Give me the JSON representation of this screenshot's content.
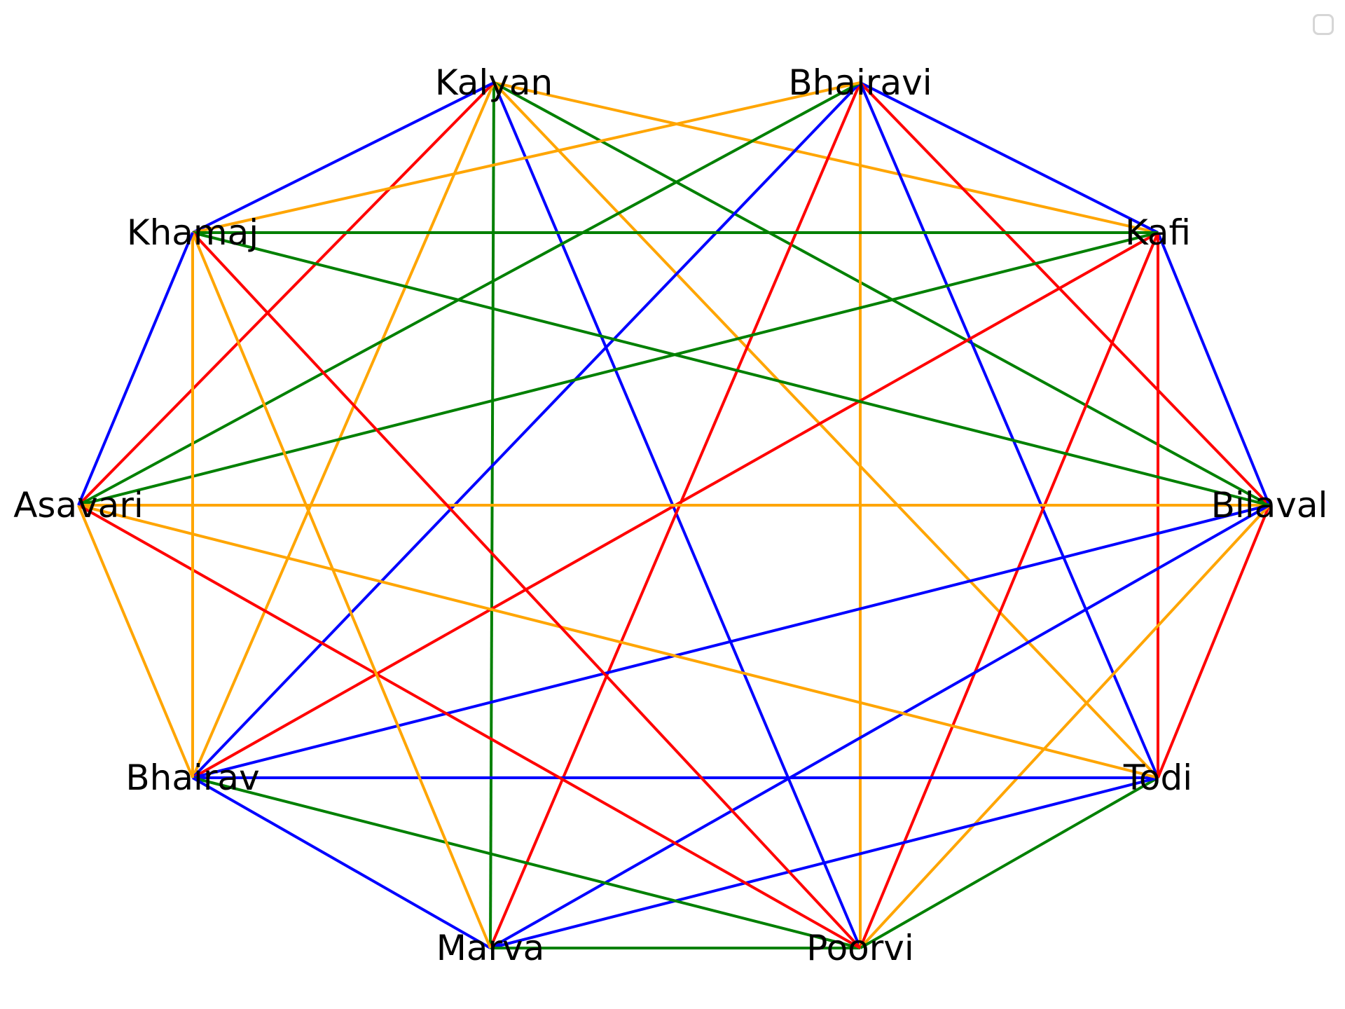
{
  "graph": {
    "colors": {
      "blue": "#0000ff",
      "red": "#ff0000",
      "orange": "#ffa500",
      "green": "#008000"
    },
    "nodes": [
      {
        "id": "Kalyan",
        "label": "Kalyan"
      },
      {
        "id": "Bhairavi",
        "label": "Bhairavi"
      },
      {
        "id": "Kafi",
        "label": "Kafi"
      },
      {
        "id": "Bilaval",
        "label": "Bilaval"
      },
      {
        "id": "Todi",
        "label": "Todi"
      },
      {
        "id": "Poorvi",
        "label": "Poorvi"
      },
      {
        "id": "Marva",
        "label": "Marva"
      },
      {
        "id": "Bhairav",
        "label": "Bhairav"
      },
      {
        "id": "Asavari",
        "label": "Asavari"
      },
      {
        "id": "Khamaj",
        "label": "Khamaj"
      }
    ],
    "edges": [
      [
        "Kalyan",
        "Bhairavi",
        "white"
      ],
      [
        "Kalyan",
        "Kafi",
        "orange"
      ],
      [
        "Kalyan",
        "Bilaval",
        "green"
      ],
      [
        "Kalyan",
        "Todi",
        "orange"
      ],
      [
        "Kalyan",
        "Poorvi",
        "blue"
      ],
      [
        "Kalyan",
        "Marva",
        "green"
      ],
      [
        "Kalyan",
        "Bhairav",
        "orange"
      ],
      [
        "Kalyan",
        "Asavari",
        "red"
      ],
      [
        "Kalyan",
        "Khamaj",
        "blue"
      ],
      [
        "Bhairavi",
        "Kafi",
        "blue"
      ],
      [
        "Bhairavi",
        "Bilaval",
        "red"
      ],
      [
        "Bhairavi",
        "Todi",
        "blue"
      ],
      [
        "Bhairavi",
        "Poorvi",
        "orange"
      ],
      [
        "Bhairavi",
        "Marva",
        "red"
      ],
      [
        "Bhairavi",
        "Bhairav",
        "blue"
      ],
      [
        "Bhairavi",
        "Asavari",
        "green"
      ],
      [
        "Bhairavi",
        "Khamaj",
        "orange"
      ],
      [
        "Kafi",
        "Bilaval",
        "blue"
      ],
      [
        "Kafi",
        "Todi",
        "red"
      ],
      [
        "Kafi",
        "Poorvi",
        "red"
      ],
      [
        "Kafi",
        "Marva",
        "white"
      ],
      [
        "Kafi",
        "Bhairav",
        "red"
      ],
      [
        "Kafi",
        "Asavari",
        "green"
      ],
      [
        "Kafi",
        "Khamaj",
        "green"
      ],
      [
        "Bilaval",
        "Todi",
        "red"
      ],
      [
        "Bilaval",
        "Poorvi",
        "orange"
      ],
      [
        "Bilaval",
        "Marva",
        "blue"
      ],
      [
        "Bilaval",
        "Bhairav",
        "blue"
      ],
      [
        "Bilaval",
        "Asavari",
        "orange"
      ],
      [
        "Bilaval",
        "Khamaj",
        "green"
      ],
      [
        "Todi",
        "Poorvi",
        "green"
      ],
      [
        "Todi",
        "Marva",
        "blue"
      ],
      [
        "Todi",
        "Bhairav",
        "blue"
      ],
      [
        "Todi",
        "Asavari",
        "orange"
      ],
      [
        "Todi",
        "Khamaj",
        "white"
      ],
      [
        "Poorvi",
        "Marva",
        "green"
      ],
      [
        "Poorvi",
        "Bhairav",
        "green"
      ],
      [
        "Poorvi",
        "Asavari",
        "red"
      ],
      [
        "Poorvi",
        "Khamaj",
        "red"
      ],
      [
        "Marva",
        "Bhairav",
        "blue"
      ],
      [
        "Marva",
        "Asavari",
        "white"
      ],
      [
        "Marva",
        "Khamaj",
        "orange"
      ],
      [
        "Bhairav",
        "Asavari",
        "orange"
      ],
      [
        "Bhairav",
        "Khamaj",
        "orange"
      ],
      [
        "Asavari",
        "Khamaj",
        "blue"
      ]
    ]
  }
}
